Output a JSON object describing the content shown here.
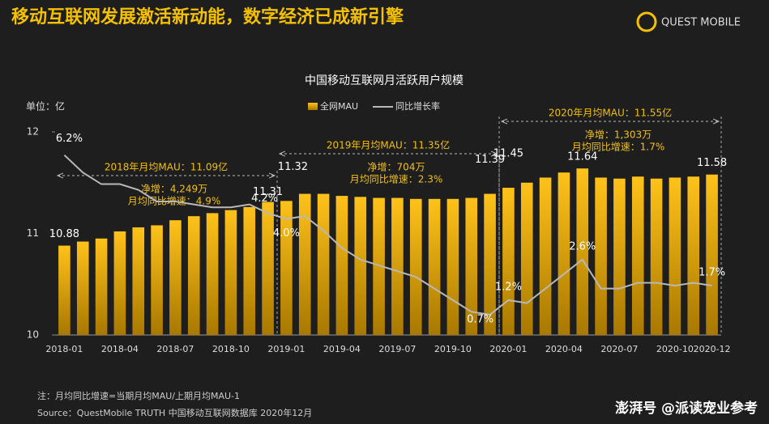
{
  "header": {
    "title": "移动互联网发展激活新动能，数字经济已成新引擎",
    "logo": "QUEST MOBILE"
  },
  "chart_data": {
    "type": "bar",
    "title": "中国移动互联网月活跃用户规模",
    "unit_label": "单位：亿",
    "categories": [
      "2018-01",
      null,
      null,
      "2018-04",
      null,
      null,
      "2018-07",
      null,
      null,
      "2018-10",
      null,
      null,
      "2019-01",
      null,
      null,
      "2019-04",
      null,
      null,
      "2019-07",
      null,
      null,
      "2019-10",
      null,
      null,
      "2020-01",
      null,
      null,
      "2020-04",
      null,
      null,
      "2020-07",
      null,
      null,
      "2020-10",
      null,
      "2020-12"
    ],
    "series": [
      {
        "name": "全网MAU",
        "color": "#f2b400",
        "values": [
          10.88,
          10.92,
          10.95,
          11.02,
          11.06,
          11.08,
          11.13,
          11.17,
          11.2,
          11.23,
          11.26,
          11.31,
          11.32,
          11.39,
          11.39,
          11.37,
          11.36,
          11.35,
          11.35,
          11.34,
          11.34,
          11.34,
          11.35,
          11.39,
          11.45,
          11.5,
          11.55,
          11.6,
          11.64,
          11.55,
          11.54,
          11.56,
          11.54,
          11.55,
          11.56,
          11.58
        ]
      },
      {
        "name": "同比增长率",
        "color": "#b8b8b8",
        "type": "line",
        "axis": "y2",
        "values": [
          6.2,
          5.6,
          5.2,
          5.2,
          5.0,
          4.6,
          4.6,
          4.5,
          4.4,
          4.4,
          4.5,
          4.2,
          4.0,
          4.1,
          3.6,
          3.0,
          2.6,
          2.4,
          2.2,
          2.0,
          1.6,
          1.2,
          0.8,
          0.7,
          1.2,
          1.1,
          1.6,
          2.1,
          2.6,
          1.6,
          1.6,
          1.8,
          1.8,
          1.7,
          1.8,
          1.7
        ],
        "value_labels": [
          "6.2%",
          null,
          null,
          null,
          null,
          null,
          null,
          null,
          null,
          null,
          null,
          "4.2%",
          "4.0%",
          null,
          null,
          null,
          null,
          null,
          null,
          null,
          null,
          null,
          null,
          "0.7%",
          "1.2%",
          null,
          null,
          null,
          "2.6%",
          null,
          null,
          null,
          null,
          null,
          null,
          "1.7%"
        ]
      }
    ],
    "ylim": [
      10,
      12
    ],
    "yticks": [
      10,
      11,
      12
    ],
    "y2lim": [
      0,
      7
    ],
    "annotations": [
      {
        "lines": [
          "2018年月均MAU：11.09亿",
          "净增：4,249万",
          "月均同比增速：4.9%"
        ]
      },
      {
        "lines": [
          "2019年月均MAU：11.35亿",
          "净增：704万",
          "月均同比增速：2.3%"
        ]
      },
      {
        "lines": [
          "2020年月均MAU：11.55亿",
          "净增：1,303万",
          "月均同比增速：1.7%"
        ]
      }
    ]
  },
  "footer": {
    "note": "注：月均同比增速=当期月均MAU/上期月均MAU-1",
    "source": "Source：QuestMobile TRUTH 中国移动互联网数据库 2020年12月"
  },
  "watermark": "澎湃号 @派读宠业参考"
}
